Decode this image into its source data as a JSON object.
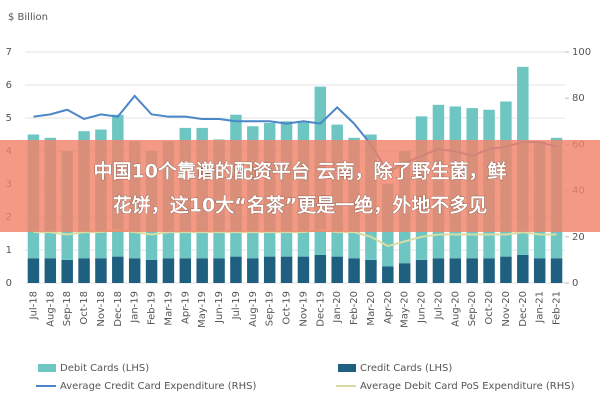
{
  "chart_data": {
    "type": "bar_line",
    "y_label": "$ Billion",
    "categories": [
      "Jul-18",
      "Aug-18",
      "Sep-18",
      "Oct-18",
      "Nov-18",
      "Dec-18",
      "Jan-19",
      "Feb-19",
      "Mar-19",
      "Apr-19",
      "May-19",
      "Jun-19",
      "Jul-19",
      "Aug-19",
      "Sep-19",
      "Oct-19",
      "Nov-19",
      "Dec-19",
      "Jan-20",
      "Feb-20",
      "Mar-20",
      "Apr-20",
      "May-20",
      "Jun-20",
      "Jul-20",
      "Aug-20",
      "Sep-20",
      "Oct-20",
      "Nov-20",
      "Dec-20",
      "Jan-21",
      "Feb-21"
    ],
    "series": [
      {
        "name": "Credit Cards (LHS)",
        "kind": "bar",
        "color": "#1f5f7f",
        "values": [
          0.75,
          0.75,
          0.7,
          0.75,
          0.75,
          0.8,
          0.75,
          0.7,
          0.75,
          0.75,
          0.75,
          0.75,
          0.8,
          0.75,
          0.8,
          0.8,
          0.8,
          0.85,
          0.8,
          0.75,
          0.7,
          0.5,
          0.6,
          0.7,
          0.75,
          0.75,
          0.75,
          0.75,
          0.8,
          0.85,
          0.75,
          0.75
        ]
      },
      {
        "name": "Debit Cards (LHS)",
        "kind": "bar",
        "color": "#6ec6c3",
        "values": [
          3.75,
          3.65,
          3.3,
          3.85,
          3.9,
          4.3,
          3.55,
          3.3,
          3.55,
          3.95,
          3.95,
          3.6,
          4.3,
          4.0,
          4.05,
          4.1,
          4.1,
          5.1,
          4.0,
          3.65,
          3.8,
          2.5,
          3.4,
          4.35,
          4.65,
          4.6,
          4.55,
          4.5,
          4.7,
          5.7,
          3.55,
          3.65
        ]
      },
      {
        "name": "Average Credit Card Expenditure (RHS)",
        "kind": "line",
        "axis": "y2",
        "color": "#4a86c8",
        "values": [
          72,
          73,
          75,
          71,
          73,
          72,
          81,
          73,
          72,
          72,
          71,
          71,
          70,
          70,
          70,
          69,
          70,
          69,
          76,
          69,
          60,
          48,
          52,
          55,
          58,
          57,
          55,
          58,
          59,
          61,
          61,
          59
        ]
      },
      {
        "name": "Average Debit Card PoS Expenditure (RHS)",
        "kind": "line",
        "axis": "y2",
        "color": "#d8dca2",
        "values": [
          22,
          22,
          21,
          22,
          22,
          23,
          22,
          21,
          22,
          22,
          22,
          22,
          22,
          22,
          22,
          22,
          22,
          23,
          22,
          22,
          20,
          16,
          18,
          20,
          21,
          21,
          21,
          21,
          21,
          22,
          21,
          21
        ]
      }
    ],
    "ylim": [
      0,
      7
    ],
    "yticks": [
      0,
      1,
      2,
      3,
      4,
      5,
      6,
      7
    ],
    "y2lim": [
      0,
      100
    ],
    "y2ticks": [
      0,
      20,
      40,
      60,
      80,
      100
    ],
    "grid": true,
    "legend": "bottom"
  },
  "banner": {
    "lines": [
      "中国10个靠谱的配资平台 云南，除了野生菌，鲜",
      "花饼，这10大“名茶”更是一绝，外地不多见"
    ]
  }
}
